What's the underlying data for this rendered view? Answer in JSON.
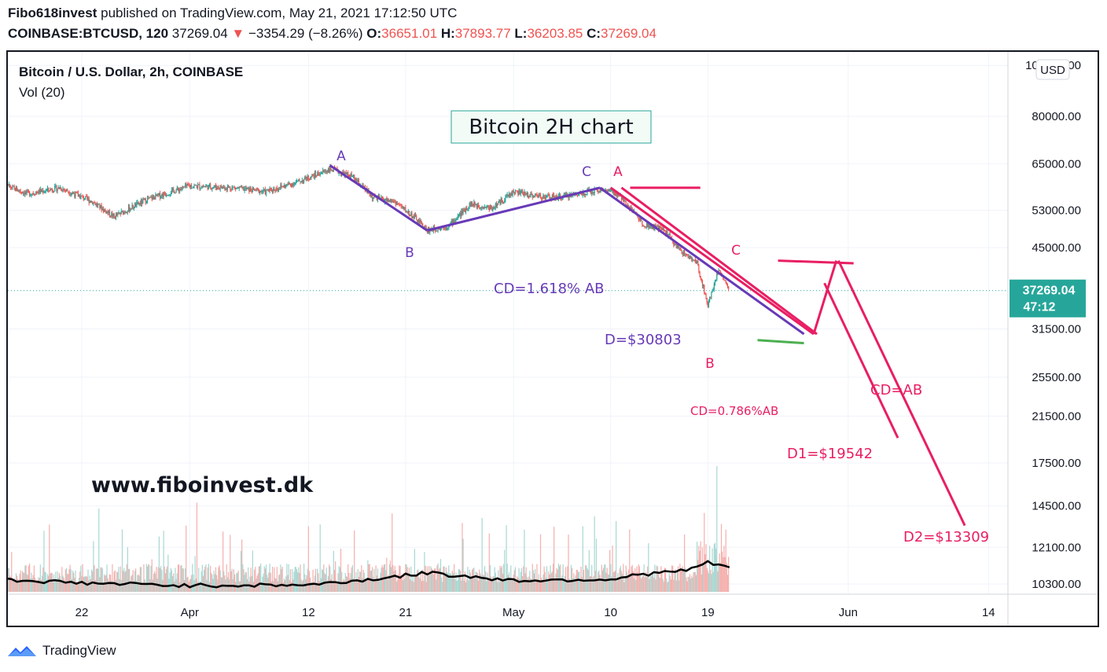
{
  "header": {
    "author": "Fibo618invest",
    "published": "published on TradingView.com, May 21, 2021 17:12:50 UTC",
    "symbol": "COINBASE:BTCUSD, 120",
    "last": "37269.04",
    "change": "−3354.29 (−8.26%)",
    "o_label": "O:",
    "o_value": "36651.01",
    "h_label": "H:",
    "h_value": "37893.77",
    "l_label": "L:",
    "l_value": "36203.85",
    "c_label": "C:",
    "c_value": "37269.04"
  },
  "chart_title": "Bitcoin / U.S. Dollar, 2h, COINBASE",
  "indicator_label": "Vol (20)",
  "currency_button": "USD",
  "annotation_box": "Bitcoin 2H chart",
  "watermark": "www.fiboinvest.dk",
  "price_tag": {
    "price": "37269.04",
    "countdown": "47:12"
  },
  "colors": {
    "purple": "#673ab7",
    "pink": "#e91e63",
    "green": "#4caf50",
    "up": "#26a69a",
    "down": "#ef5350",
    "tag": "#26a69a"
  },
  "labels": {
    "A1": "A",
    "B1": "B",
    "C1": "C",
    "A2": "A",
    "B2": "B",
    "C2": "C",
    "cd_purple": "CD=1.618% AB",
    "d_purple": "D=$30803",
    "cd_786": "CD=0.786%AB",
    "d1": "D1=$19542",
    "cd_ab": "CD=AB",
    "d2": "D2=$13309"
  },
  "footer": {
    "brand": "TradingView"
  },
  "chart_data": {
    "type": "line",
    "title": "Bitcoin / U.S. Dollar, 2h, COINBASE",
    "scale": "log",
    "y_ticks": [
      100000,
      80000,
      65000,
      53000,
      45000,
      31500,
      25500,
      21500,
      17500,
      14500,
      12100,
      10300
    ],
    "y_tick_labels": [
      "100000.00",
      "80000.00",
      "65000.00",
      "53000.00",
      "45000.00",
      "31500.00",
      "25500.00",
      "21500.00",
      "17500.00",
      "14500.00",
      "12100.00",
      "10300.00"
    ],
    "x_tick_labels": [
      "22",
      "Apr",
      "12",
      "21",
      "May",
      "10",
      "19",
      "Jun",
      "14"
    ],
    "x_tick_dates": [
      "2021-03-22",
      "2021-04-01",
      "2021-04-12",
      "2021-04-21",
      "2021-05-01",
      "2021-05-10",
      "2021-05-19",
      "2021-06-01",
      "2021-06-14"
    ],
    "price_path": [
      {
        "date": "2021-03-14",
        "price": 60000
      },
      {
        "date": "2021-03-17",
        "price": 57000
      },
      {
        "date": "2021-03-20",
        "price": 58500
      },
      {
        "date": "2021-03-23",
        "price": 55000
      },
      {
        "date": "2021-03-25",
        "price": 51500
      },
      {
        "date": "2021-03-28",
        "price": 55500
      },
      {
        "date": "2021-04-01",
        "price": 59000
      },
      {
        "date": "2021-04-05",
        "price": 58500
      },
      {
        "date": "2021-04-08",
        "price": 57500
      },
      {
        "date": "2021-04-11",
        "price": 60000
      },
      {
        "date": "2021-04-14",
        "price": 63500
      },
      {
        "date": "2021-04-16",
        "price": 61500
      },
      {
        "date": "2021-04-18",
        "price": 56000
      },
      {
        "date": "2021-04-20",
        "price": 55000
      },
      {
        "date": "2021-04-22",
        "price": 51000
      },
      {
        "date": "2021-04-23",
        "price": 48500
      },
      {
        "date": "2021-04-25",
        "price": 49500
      },
      {
        "date": "2021-04-27",
        "price": 54500
      },
      {
        "date": "2021-04-29",
        "price": 53500
      },
      {
        "date": "2021-05-01",
        "price": 57500
      },
      {
        "date": "2021-05-03",
        "price": 56500
      },
      {
        "date": "2021-05-05",
        "price": 56000
      },
      {
        "date": "2021-05-07",
        "price": 57000
      },
      {
        "date": "2021-05-09",
        "price": 58000
      },
      {
        "date": "2021-05-10",
        "price": 57500
      },
      {
        "date": "2021-05-11",
        "price": 56000
      },
      {
        "date": "2021-05-12",
        "price": 53000
      },
      {
        "date": "2021-05-13",
        "price": 50000
      },
      {
        "date": "2021-05-15",
        "price": 48500
      },
      {
        "date": "2021-05-16",
        "price": 45500
      },
      {
        "date": "2021-05-17",
        "price": 43500
      },
      {
        "date": "2021-05-18",
        "price": 42000
      },
      {
        "date": "2021-05-19",
        "price": 35000
      },
      {
        "date": "2021-05-20",
        "price": 41000
      },
      {
        "date": "2021-05-21",
        "price": 37269
      }
    ],
    "volume_ma": [
      {
        "date": "2021-03-14",
        "volume": 1.0
      },
      {
        "date": "2021-03-22",
        "volume": 0.7
      },
      {
        "date": "2021-04-01",
        "volume": 0.5
      },
      {
        "date": "2021-04-12",
        "volume": 0.55
      },
      {
        "date": "2021-04-18",
        "volume": 1.0
      },
      {
        "date": "2021-04-23",
        "volume": 1.5
      },
      {
        "date": "2021-05-01",
        "volume": 0.9
      },
      {
        "date": "2021-05-10",
        "volume": 1.0
      },
      {
        "date": "2021-05-13",
        "volume": 1.4
      },
      {
        "date": "2021-05-17",
        "volume": 1.7
      },
      {
        "date": "2021-05-19",
        "volume": 2.3
      },
      {
        "date": "2021-05-21",
        "volume": 2.0
      }
    ],
    "patterns": {
      "abcd_purple": {
        "A": 64500,
        "B": 48500,
        "C": 58500,
        "D": 30803
      },
      "abcd_786": {
        "A": 58500,
        "B": 30803,
        "C": 42500,
        "D": 19542
      },
      "abcd_equal": {
        "A": 58500,
        "B": 30803,
        "C": 42500,
        "D": 13309
      }
    },
    "last_price": 37269.04
  }
}
